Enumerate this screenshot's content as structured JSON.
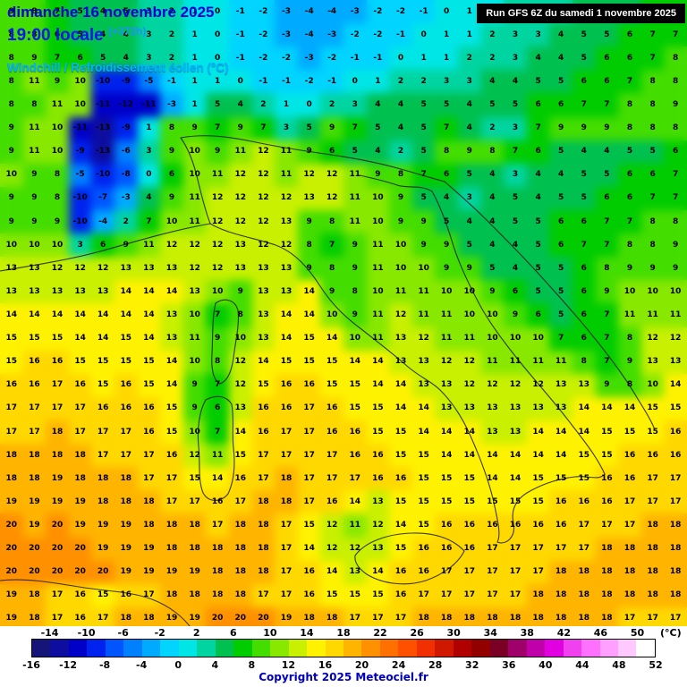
{
  "header": {
    "date_line": "dimanche 16 novembre 2025",
    "time_line": "19:00 locale",
    "offset_label": "(+372h)",
    "param_line": "Windchill / Refroidissement éolien (°C)",
    "run_info": "Run GFS 6Z du samedi 1 novembre 2025"
  },
  "map": {
    "cols": 30,
    "rows": 27,
    "values": [
      [
        9,
        8,
        7,
        5,
        4,
        5,
        3,
        2,
        1,
        0,
        -1,
        -2,
        -3,
        -4,
        -4,
        -3,
        -2,
        -2,
        -1,
        0,
        1,
        1,
        2,
        2,
        3,
        4,
        4,
        5,
        6,
        6
      ],
      [
        8,
        8,
        6,
        5,
        4,
        4,
        3,
        2,
        1,
        0,
        -1,
        -2,
        -3,
        -4,
        -3,
        -2,
        -2,
        -1,
        0,
        1,
        1,
        2,
        3,
        3,
        4,
        5,
        5,
        6,
        7,
        7
      ],
      [
        8,
        9,
        7,
        6,
        5,
        4,
        3,
        2,
        1,
        0,
        -1,
        -2,
        -2,
        -3,
        -2,
        -1,
        -1,
        0,
        1,
        1,
        2,
        2,
        3,
        4,
        4,
        5,
        6,
        6,
        7,
        8
      ],
      [
        8,
        11,
        9,
        10,
        -10,
        -9,
        -5,
        -1,
        1,
        1,
        0,
        -1,
        -1,
        -2,
        -1,
        0,
        1,
        2,
        2,
        3,
        3,
        4,
        4,
        5,
        5,
        6,
        6,
        7,
        8,
        8
      ],
      [
        8,
        8,
        11,
        10,
        -11,
        -12,
        -11,
        -3,
        1,
        5,
        4,
        2,
        1,
        0,
        2,
        3,
        4,
        4,
        5,
        5,
        4,
        5,
        5,
        6,
        6,
        7,
        7,
        8,
        8,
        9
      ],
      [
        9,
        11,
        10,
        -11,
        -13,
        -9,
        1,
        8,
        9,
        7,
        9,
        7,
        3,
        5,
        9,
        7,
        5,
        4,
        5,
        7,
        4,
        2,
        3,
        7,
        9,
        9,
        9,
        8,
        8,
        8
      ],
      [
        9,
        11,
        10,
        -9,
        -13,
        -6,
        3,
        9,
        10,
        9,
        11,
        12,
        11,
        9,
        6,
        5,
        4,
        2,
        5,
        8,
        9,
        8,
        7,
        6,
        5,
        4,
        4,
        5,
        5,
        6
      ],
      [
        10,
        9,
        8,
        -5,
        -10,
        -8,
        0,
        6,
        10,
        11,
        12,
        12,
        11,
        12,
        12,
        11,
        9,
        8,
        7,
        6,
        5,
        4,
        3,
        4,
        4,
        5,
        5,
        6,
        6,
        7
      ],
      [
        9,
        9,
        8,
        -10,
        -7,
        -3,
        4,
        9,
        11,
        12,
        12,
        12,
        12,
        13,
        12,
        11,
        10,
        9,
        5,
        4,
        3,
        4,
        5,
        4,
        5,
        5,
        6,
        6,
        7,
        7
      ],
      [
        9,
        9,
        9,
        -10,
        -4,
        2,
        7,
        10,
        11,
        12,
        12,
        12,
        13,
        9,
        8,
        11,
        10,
        9,
        9,
        5,
        4,
        4,
        5,
        5,
        6,
        6,
        7,
        7,
        8,
        8
      ],
      [
        10,
        10,
        10,
        3,
        6,
        9,
        11,
        12,
        12,
        12,
        13,
        12,
        12,
        8,
        7,
        9,
        11,
        10,
        9,
        9,
        5,
        4,
        4,
        5,
        6,
        7,
        7,
        8,
        8,
        9
      ],
      [
        13,
        13,
        12,
        12,
        12,
        13,
        13,
        13,
        12,
        12,
        13,
        13,
        13,
        9,
        8,
        9,
        11,
        10,
        10,
        9,
        9,
        5,
        4,
        5,
        5,
        6,
        8,
        9,
        9,
        9
      ],
      [
        13,
        13,
        13,
        13,
        13,
        14,
        14,
        14,
        13,
        10,
        9,
        13,
        13,
        14,
        9,
        8,
        10,
        11,
        11,
        10,
        10,
        9,
        6,
        5,
        5,
        6,
        9,
        10,
        10,
        10
      ],
      [
        14,
        14,
        14,
        14,
        14,
        14,
        14,
        13,
        10,
        7,
        8,
        13,
        14,
        14,
        10,
        9,
        11,
        12,
        11,
        11,
        10,
        10,
        9,
        6,
        5,
        6,
        7,
        11,
        11,
        11
      ],
      [
        15,
        15,
        15,
        14,
        14,
        15,
        14,
        13,
        11,
        9,
        10,
        13,
        14,
        15,
        14,
        10,
        11,
        13,
        12,
        11,
        11,
        10,
        10,
        10,
        7,
        6,
        7,
        8,
        12,
        12
      ],
      [
        15,
        16,
        16,
        15,
        15,
        15,
        15,
        14,
        10,
        8,
        12,
        14,
        15,
        15,
        15,
        14,
        14,
        13,
        13,
        12,
        12,
        11,
        11,
        11,
        11,
        8,
        7,
        9,
        13,
        13
      ],
      [
        16,
        16,
        17,
        16,
        15,
        16,
        15,
        14,
        9,
        7,
        12,
        15,
        16,
        16,
        15,
        15,
        14,
        14,
        13,
        13,
        12,
        12,
        12,
        12,
        13,
        13,
        9,
        8,
        10,
        14
      ],
      [
        17,
        17,
        17,
        17,
        16,
        16,
        16,
        15,
        9,
        6,
        13,
        16,
        16,
        17,
        16,
        15,
        15,
        14,
        14,
        13,
        13,
        13,
        13,
        13,
        13,
        14,
        14,
        14,
        15,
        15
      ],
      [
        17,
        17,
        18,
        17,
        17,
        17,
        16,
        15,
        10,
        7,
        14,
        16,
        17,
        17,
        16,
        16,
        15,
        15,
        14,
        14,
        14,
        13,
        13,
        14,
        14,
        14,
        15,
        15,
        15,
        16
      ],
      [
        18,
        18,
        18,
        18,
        17,
        17,
        17,
        16,
        12,
        11,
        15,
        17,
        17,
        17,
        17,
        16,
        16,
        15,
        15,
        14,
        14,
        14,
        14,
        14,
        14,
        15,
        15,
        16,
        16,
        16
      ],
      [
        18,
        18,
        19,
        18,
        18,
        18,
        17,
        17,
        15,
        14,
        16,
        17,
        18,
        17,
        17,
        17,
        16,
        16,
        15,
        15,
        15,
        14,
        14,
        15,
        15,
        15,
        16,
        16,
        17,
        17
      ],
      [
        19,
        19,
        19,
        19,
        18,
        18,
        18,
        17,
        17,
        16,
        17,
        18,
        18,
        17,
        16,
        14,
        13,
        15,
        15,
        15,
        15,
        15,
        15,
        15,
        16,
        16,
        16,
        17,
        17,
        17
      ],
      [
        20,
        19,
        20,
        19,
        19,
        19,
        18,
        18,
        18,
        17,
        18,
        18,
        17,
        15,
        12,
        11,
        12,
        14,
        15,
        16,
        16,
        16,
        16,
        16,
        16,
        17,
        17,
        17,
        18,
        18
      ],
      [
        20,
        20,
        20,
        20,
        19,
        19,
        19,
        18,
        18,
        18,
        18,
        18,
        17,
        14,
        12,
        12,
        13,
        15,
        16,
        16,
        16,
        17,
        17,
        17,
        17,
        17,
        18,
        18,
        18,
        18
      ],
      [
        20,
        20,
        20,
        20,
        20,
        19,
        19,
        19,
        19,
        18,
        18,
        18,
        17,
        16,
        14,
        13,
        14,
        16,
        16,
        17,
        17,
        17,
        17,
        17,
        18,
        18,
        18,
        18,
        18,
        18
      ],
      [
        19,
        18,
        17,
        16,
        15,
        16,
        17,
        18,
        18,
        18,
        18,
        17,
        17,
        16,
        15,
        15,
        15,
        16,
        17,
        17,
        17,
        17,
        17,
        18,
        18,
        18,
        18,
        18,
        18,
        18
      ],
      [
        19,
        18,
        17,
        16,
        17,
        18,
        18,
        19,
        19,
        20,
        20,
        20,
        19,
        18,
        18,
        17,
        17,
        17,
        18,
        18,
        18,
        18,
        18,
        18,
        18,
        18,
        18,
        17,
        17,
        17
      ]
    ]
  },
  "scale": {
    "unit_label": "(°C)",
    "min": -16,
    "max": 52,
    "step": 2,
    "top_labels": [
      -14,
      -10,
      -6,
      -2,
      2,
      6,
      10,
      14,
      18,
      22,
      26,
      30,
      34,
      38,
      42,
      46,
      50
    ],
    "bottom_labels": [
      -16,
      -12,
      -8,
      -4,
      0,
      4,
      8,
      12,
      16,
      20,
      24,
      28,
      32,
      36,
      40,
      44,
      48,
      52
    ],
    "colors": [
      "#151579",
      "#0d0da0",
      "#0000c8",
      "#0022ee",
      "#0055ff",
      "#0080ff",
      "#00aaff",
      "#00d4ff",
      "#00e6e6",
      "#00d4a0",
      "#00c050",
      "#00cc00",
      "#44dd00",
      "#88e800",
      "#c8f000",
      "#fff200",
      "#ffd800",
      "#ffb400",
      "#ff9000",
      "#ff7000",
      "#ff5000",
      "#f03000",
      "#d01800",
      "#b00000",
      "#920000",
      "#7a0026",
      "#a0006a",
      "#c000a8",
      "#e000e0",
      "#f040f0",
      "#ff70ff",
      "#ff9fff",
      "#ffc8ff",
      "#ffffff"
    ]
  },
  "footer": {
    "copyright": "Copyright 2025 Meteociel.fr"
  }
}
